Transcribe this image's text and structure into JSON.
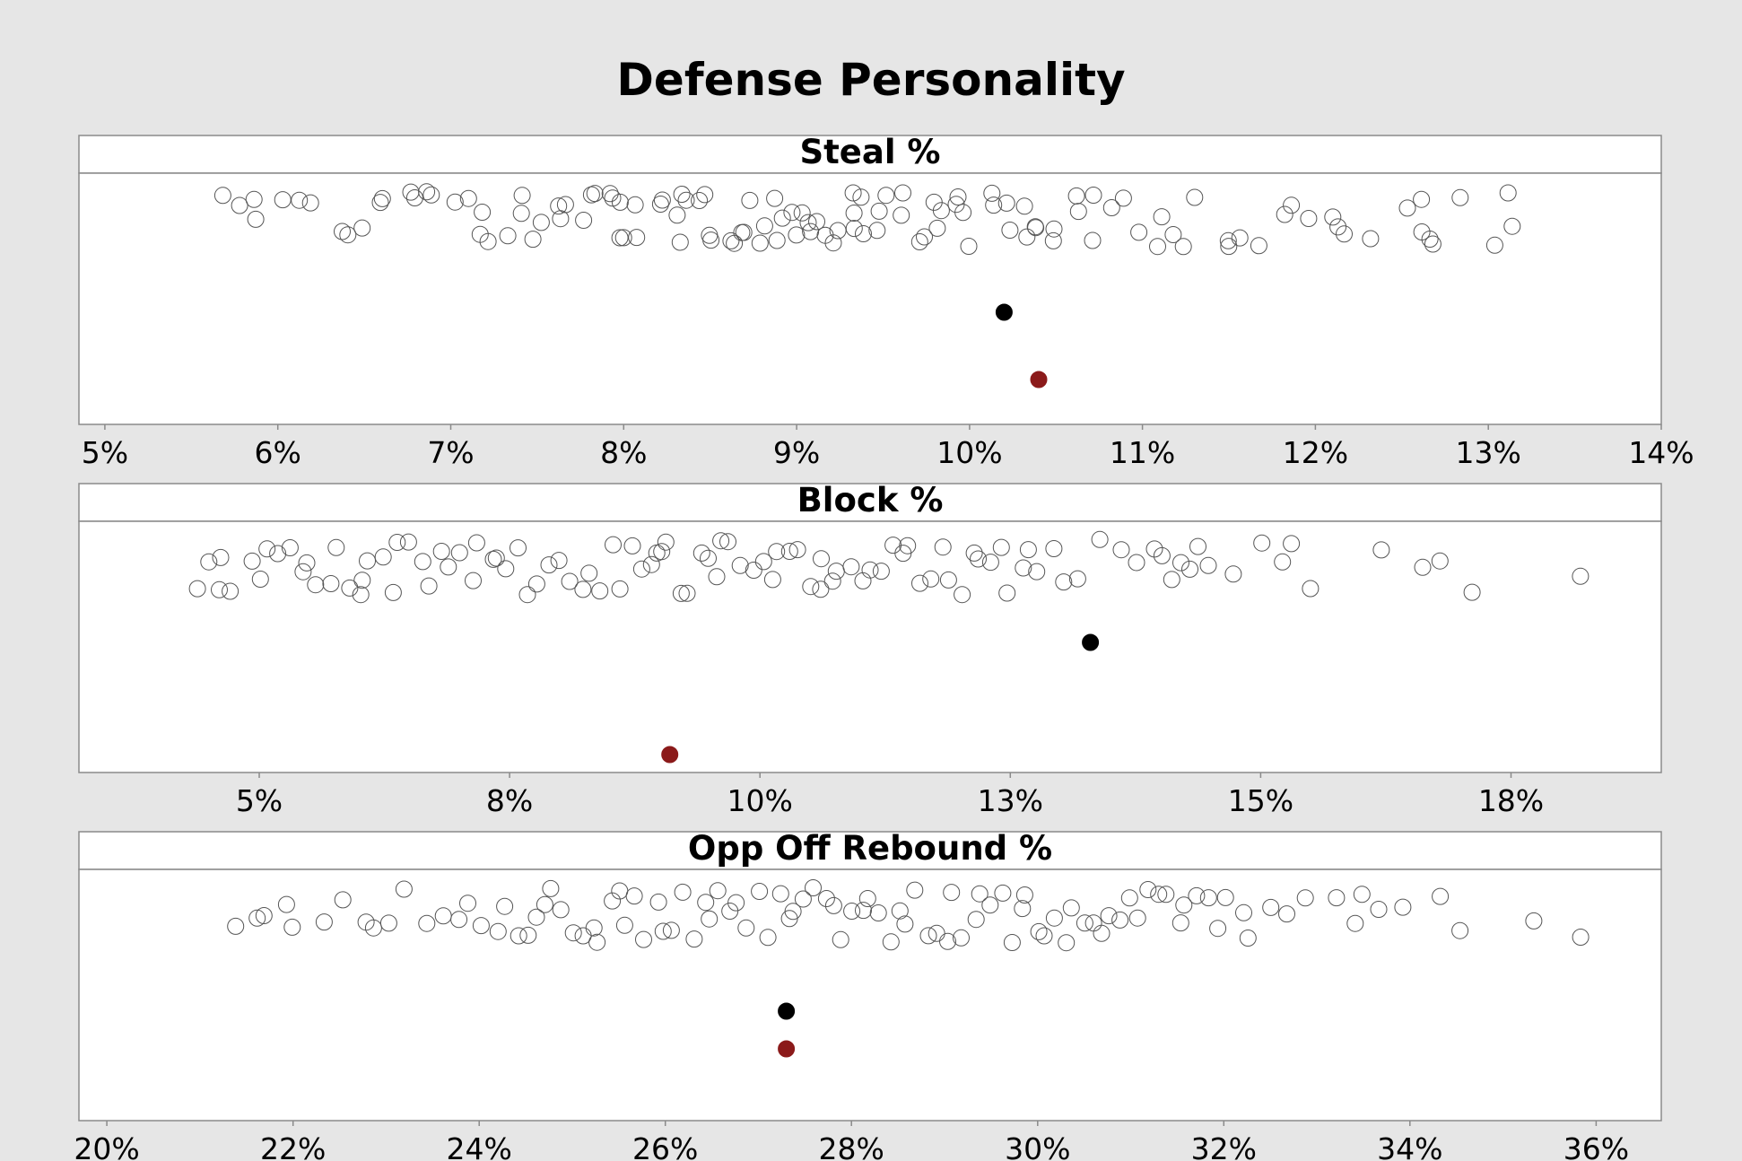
{
  "title": "Defense Personality",
  "colors": {
    "background": "#e6e6e6",
    "panel": "#ffffff",
    "team_point": "#000000",
    "highlight_point": "#8b1a1a"
  },
  "chart_data": [
    {
      "type": "scatter",
      "title": "Steal %",
      "xlim": [
        4.85,
        14.0
      ],
      "ticks": [
        5,
        6,
        7,
        8,
        9,
        10,
        11,
        12,
        13,
        14
      ],
      "tick_labels": [
        "5%",
        "6%",
        "7%",
        "8%",
        "9%",
        "10%",
        "11%",
        "12%",
        "13%",
        "14%"
      ],
      "distribution": [
        5.7,
        5.8,
        5.9,
        5.9,
        6.0,
        6.1,
        6.2,
        6.4,
        6.4,
        6.5,
        6.6,
        6.6,
        6.8,
        6.8,
        6.9,
        6.9,
        7.0,
        7.1,
        7.2,
        7.2,
        7.2,
        7.3,
        7.4,
        7.4,
        7.5,
        7.5,
        7.6,
        7.6,
        7.7,
        7.8,
        7.8,
        7.8,
        7.9,
        7.9,
        8.0,
        8.0,
        8.0,
        8.1,
        8.1,
        8.2,
        8.2,
        8.3,
        8.3,
        8.3,
        8.4,
        8.4,
        8.5,
        8.5,
        8.5,
        8.6,
        8.6,
        8.7,
        8.7,
        8.7,
        8.8,
        8.8,
        8.9,
        8.9,
        8.9,
        9.0,
        9.0,
        9.0,
        9.1,
        9.1,
        9.1,
        9.2,
        9.2,
        9.2,
        9.3,
        9.3,
        9.3,
        9.4,
        9.4,
        9.5,
        9.5,
        9.5,
        9.6,
        9.6,
        9.7,
        9.7,
        9.8,
        9.8,
        9.8,
        9.9,
        9.9,
        10.0,
        10.0,
        10.1,
        10.1,
        10.2,
        10.2,
        10.3,
        10.3,
        10.4,
        10.4,
        10.5,
        10.5,
        10.6,
        10.6,
        10.7,
        10.7,
        10.8,
        10.9,
        11.0,
        11.1,
        11.1,
        11.2,
        11.2,
        11.3,
        11.5,
        11.5,
        11.6,
        11.7,
        11.8,
        11.9,
        12.0,
        12.1,
        12.1,
        12.2,
        12.3,
        12.5,
        12.6,
        12.6,
        12.7,
        12.7,
        12.8,
        13.0,
        13.1,
        13.1
      ],
      "markers": [
        {
          "x": 10.2,
          "color": "#000000"
        },
        {
          "x": 10.4,
          "color": "#8b1a1a"
        }
      ]
    },
    {
      "type": "scatter",
      "title": "Block %",
      "xlim": [
        3.2,
        19.0
      ],
      "ticks": [
        5,
        7.5,
        10,
        12.5,
        15,
        17.5
      ],
      "tick_labels": [
        "5%",
        "8%",
        "10%",
        "13%",
        "15%",
        "18%"
      ],
      "distribution": [
        4.4,
        4.5,
        4.6,
        4.6,
        4.7,
        4.9,
        5.0,
        5.1,
        5.2,
        5.3,
        5.4,
        5.5,
        5.6,
        5.7,
        5.8,
        5.9,
        6.0,
        6.0,
        6.1,
        6.2,
        6.3,
        6.4,
        6.5,
        6.6,
        6.7,
        6.8,
        6.9,
        7.0,
        7.1,
        7.2,
        7.3,
        7.4,
        7.5,
        7.6,
        7.7,
        7.8,
        7.9,
        8.0,
        8.1,
        8.2,
        8.3,
        8.4,
        8.5,
        8.6,
        8.7,
        8.8,
        8.9,
        9.0,
        9.0,
        9.1,
        9.2,
        9.3,
        9.4,
        9.5,
        9.6,
        9.6,
        9.7,
        9.8,
        9.9,
        10.0,
        10.1,
        10.2,
        10.3,
        10.4,
        10.5,
        10.6,
        10.6,
        10.7,
        10.8,
        10.9,
        11.0,
        11.1,
        11.2,
        11.3,
        11.4,
        11.5,
        11.6,
        11.7,
        11.8,
        11.9,
        12.0,
        12.1,
        12.2,
        12.3,
        12.4,
        12.5,
        12.6,
        12.7,
        12.8,
        12.9,
        13.0,
        13.2,
        13.4,
        13.6,
        13.8,
        13.9,
        14.0,
        14.1,
        14.2,
        14.3,
        14.4,
        14.5,
        14.7,
        15.0,
        15.2,
        15.3,
        15.5,
        16.2,
        16.6,
        16.8,
        17.1,
        18.2
      ],
      "markers": [
        {
          "x": 13.3,
          "color": "#000000"
        },
        {
          "x": 9.1,
          "color": "#8b1a1a"
        }
      ]
    },
    {
      "type": "scatter",
      "title": "Opp Off Rebound %",
      "xlim": [
        19.7,
        36.7
      ],
      "ticks": [
        20,
        22,
        24,
        26,
        28,
        30,
        32,
        34,
        36
      ],
      "tick_labels": [
        "20%",
        "22%",
        "24%",
        "26%",
        "28%",
        "30%",
        "32%",
        "34%",
        "36%"
      ],
      "distribution": [
        21.4,
        21.6,
        21.7,
        21.9,
        22.0,
        22.3,
        22.5,
        22.8,
        22.9,
        23.0,
        23.2,
        23.4,
        23.6,
        23.8,
        23.9,
        24.0,
        24.2,
        24.3,
        24.4,
        24.5,
        24.6,
        24.7,
        24.8,
        24.9,
        25.0,
        25.1,
        25.2,
        25.3,
        25.4,
        25.5,
        25.6,
        25.7,
        25.8,
        25.9,
        26.0,
        26.1,
        26.2,
        26.3,
        26.4,
        26.5,
        26.6,
        26.7,
        26.8,
        26.9,
        27.0,
        27.1,
        27.2,
        27.3,
        27.4,
        27.5,
        27.6,
        27.7,
        27.8,
        27.9,
        28.0,
        28.1,
        28.2,
        28.3,
        28.4,
        28.5,
        28.6,
        28.7,
        28.8,
        28.9,
        29.0,
        29.1,
        29.2,
        29.3,
        29.4,
        29.5,
        29.6,
        29.7,
        29.8,
        29.9,
        30.0,
        30.1,
        30.2,
        30.3,
        30.4,
        30.5,
        30.6,
        30.7,
        30.8,
        30.9,
        31.0,
        31.1,
        31.2,
        31.3,
        31.4,
        31.5,
        31.6,
        31.7,
        31.8,
        31.9,
        32.0,
        32.2,
        32.3,
        32.5,
        32.7,
        32.9,
        33.2,
        33.4,
        33.5,
        33.7,
        33.9,
        34.3,
        34.5,
        35.3,
        35.8
      ],
      "markers": [
        {
          "x": 27.3,
          "color": "#000000"
        },
        {
          "x": 27.3,
          "color": "#8b1a1a"
        }
      ]
    }
  ]
}
